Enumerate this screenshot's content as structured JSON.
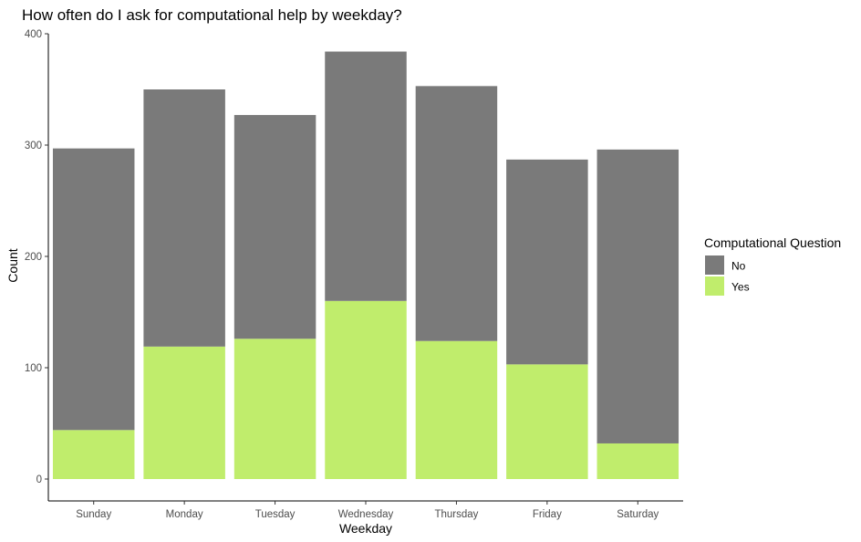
{
  "chart_data": {
    "type": "bar",
    "stacked": true,
    "title": "How often do I ask for computational help by weekday?",
    "xlabel": "Weekday",
    "ylabel": "Count",
    "categories": [
      "Sunday",
      "Monday",
      "Tuesday",
      "Wednesday",
      "Thursday",
      "Friday",
      "Saturday"
    ],
    "series": [
      {
        "name": "Yes",
        "color": "#c0ed6c",
        "values": [
          44,
          119,
          126,
          160,
          124,
          103,
          32
        ]
      },
      {
        "name": "No",
        "color": "#7a7a7a",
        "values": [
          253,
          231,
          201,
          224,
          229,
          184,
          264
        ]
      }
    ],
    "ylim": [
      0,
      400
    ],
    "yticks": [
      0,
      100,
      200,
      300,
      400
    ],
    "grid": false,
    "legend": {
      "title": "Computational Question",
      "position": "right",
      "entries": [
        {
          "label": "No",
          "color": "#7a7a7a"
        },
        {
          "label": "Yes",
          "color": "#c0ed6c"
        }
      ]
    }
  }
}
